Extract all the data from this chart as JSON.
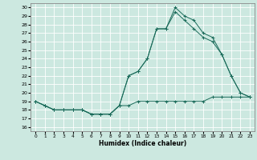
{
  "title": "",
  "xlabel": "Humidex (Indice chaleur)",
  "bg_color": "#cce8e0",
  "grid_color": "#ffffff",
  "line_color": "#1a6b5a",
  "xlim": [
    -0.5,
    23.5
  ],
  "ylim": [
    15.5,
    30.5
  ],
  "yticks": [
    16,
    17,
    18,
    19,
    20,
    21,
    22,
    23,
    24,
    25,
    26,
    27,
    28,
    29,
    30
  ],
  "xticks": [
    0,
    1,
    2,
    3,
    4,
    5,
    6,
    7,
    8,
    9,
    10,
    11,
    12,
    13,
    14,
    15,
    16,
    17,
    18,
    19,
    20,
    21,
    22,
    23
  ],
  "series1_y": [
    19,
    18.5,
    18,
    18,
    18,
    18,
    17.5,
    17.5,
    17.5,
    18.5,
    18.5,
    19,
    19,
    19,
    19,
    19,
    19,
    19,
    19,
    19.5,
    19.5,
    19.5,
    19.5,
    19.5
  ],
  "series2_y": [
    19,
    18.5,
    18,
    18,
    18,
    18,
    17.5,
    17.5,
    17.5,
    18.5,
    22,
    22.5,
    24,
    27.5,
    27.5,
    29.5,
    28.5,
    27.5,
    26.5,
    26,
    24.5,
    22,
    20,
    19.5
  ],
  "series3_y": [
    19,
    18.5,
    18,
    18,
    18,
    18,
    17.5,
    17.5,
    17.5,
    18.5,
    22,
    22.5,
    24,
    27.5,
    27.5,
    30,
    29,
    28.5,
    27,
    26.5,
    24.5,
    22,
    20,
    19.5
  ]
}
